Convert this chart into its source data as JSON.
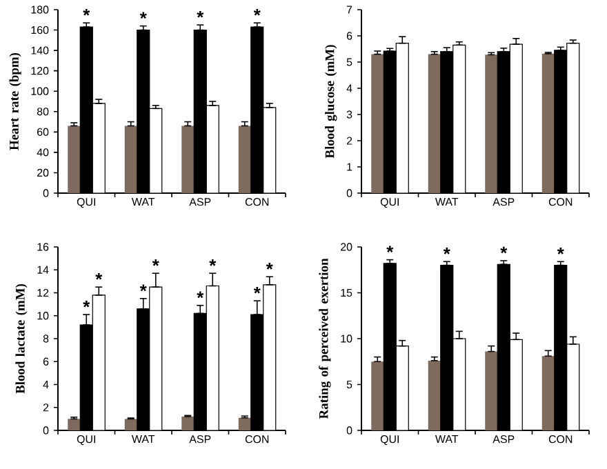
{
  "chart_data": [
    {
      "type": "bar",
      "ylabel": "Heart rate (bpm)",
      "categories": [
        "QUI",
        "WAT",
        "ASP",
        "CON"
      ],
      "ylim": [
        0,
        180
      ],
      "yticks": [
        0,
        20,
        40,
        60,
        80,
        100,
        120,
        140,
        160,
        180
      ],
      "series": [
        {
          "color": "#7f6b5d",
          "values": [
            66,
            66,
            66,
            66
          ],
          "errors": [
            [
              66,
              69
            ],
            [
              66,
              70
            ],
            [
              66,
              70
            ],
            [
              66,
              70
            ]
          ]
        },
        {
          "color": "#000000",
          "values": [
            163,
            160,
            160,
            163
          ],
          "errors": [
            [
              163,
              167
            ],
            [
              160,
              164
            ],
            [
              160,
              165
            ],
            [
              163,
              167
            ]
          ]
        },
        {
          "color": "#ffffff",
          "values": [
            88,
            83,
            86,
            84
          ],
          "errors": [
            [
              88,
              92
            ],
            [
              83,
              86
            ],
            [
              86,
              90
            ],
            [
              84,
              88
            ]
          ]
        }
      ],
      "annotations": [
        {
          "text": "*",
          "x": "QUI",
          "y": 163
        },
        {
          "text": "*",
          "x": "WAT",
          "y": 160
        },
        {
          "text": "*",
          "x": "ASP",
          "y": 160
        },
        {
          "text": "*",
          "x": "CON",
          "y": 163
        }
      ]
    },
    {
      "type": "bar",
      "ylabel": "Blood glucose (mM)",
      "categories": [
        "QUI",
        "WAT",
        "ASP",
        "CON"
      ],
      "ylim": [
        0,
        7
      ],
      "yticks": [
        0,
        1,
        2,
        3,
        4,
        5,
        6,
        7
      ],
      "series": [
        {
          "color": "#7f6b5d",
          "values": [
            5.3,
            5.3,
            5.28,
            5.32
          ],
          "errors": [
            [
              5.3,
              5.42
            ],
            [
              5.3,
              5.4
            ],
            [
              5.28,
              5.36
            ],
            [
              5.32,
              5.37
            ]
          ]
        },
        {
          "color": "#000000",
          "values": [
            5.42,
            5.4,
            5.4,
            5.45
          ],
          "errors": [
            [
              5.42,
              5.52
            ],
            [
              5.4,
              5.55
            ],
            [
              5.4,
              5.53
            ],
            [
              5.45,
              5.57
            ]
          ]
        },
        {
          "color": "#ffffff",
          "values": [
            5.72,
            5.65,
            5.68,
            5.72
          ],
          "errors": [
            [
              5.72,
              5.97
            ],
            [
              5.65,
              5.77
            ],
            [
              5.68,
              5.9
            ],
            [
              5.72,
              5.84
            ]
          ]
        }
      ]
    },
    {
      "type": "bar",
      "ylabel": "Blood lactate (mM)",
      "categories": [
        "QUI",
        "WAT",
        "ASP",
        "CON"
      ],
      "ylim": [
        0,
        16
      ],
      "yticks": [
        0,
        2,
        4,
        6,
        8,
        10,
        12,
        14,
        16
      ],
      "series": [
        {
          "color": "#7f6b5d",
          "values": [
            1.0,
            1.0,
            1.2,
            1.1
          ],
          "errors": [
            [
              1.0,
              1.15
            ],
            [
              1.0,
              1.08
            ],
            [
              1.2,
              1.3
            ],
            [
              1.1,
              1.25
            ]
          ]
        },
        {
          "color": "#000000",
          "values": [
            9.2,
            10.6,
            10.2,
            10.1
          ],
          "errors": [
            [
              9.2,
              10.1
            ],
            [
              10.6,
              11.5
            ],
            [
              10.2,
              10.9
            ],
            [
              10.1,
              11.3
            ]
          ]
        },
        {
          "color": "#ffffff",
          "values": [
            11.8,
            12.5,
            12.6,
            12.7
          ],
          "errors": [
            [
              11.8,
              12.5
            ],
            [
              12.5,
              13.7
            ],
            [
              12.6,
              13.7
            ],
            [
              12.7,
              13.4
            ]
          ]
        }
      ],
      "annotations": [
        {
          "text": "*",
          "x": "QUI",
          "y": 9.2
        },
        {
          "text": "*",
          "x": "QUI",
          "y": 11.8
        },
        {
          "text": "*",
          "x": "WAT",
          "y": 10.6
        },
        {
          "text": "*",
          "x": "WAT",
          "y": 12.5
        },
        {
          "text": "*",
          "x": "ASP",
          "y": 10.2
        },
        {
          "text": "*",
          "x": "ASP",
          "y": 12.6
        },
        {
          "text": "*",
          "x": "CON",
          "y": 10.1
        },
        {
          "text": "*",
          "x": "CON",
          "y": 12.7
        }
      ]
    },
    {
      "type": "bar",
      "ylabel": "Rating of perceived exertion",
      "categories": [
        "QUI",
        "WAT",
        "ASP",
        "CON"
      ],
      "ylim": [
        0,
        20
      ],
      "yticks": [
        0,
        5,
        10,
        15,
        20
      ],
      "series": [
        {
          "color": "#7f6b5d",
          "values": [
            7.5,
            7.6,
            8.6,
            8.1
          ],
          "errors": [
            [
              7.5,
              8.0
            ],
            [
              7.6,
              8.0
            ],
            [
              8.6,
              9.2
            ],
            [
              8.1,
              8.7
            ]
          ]
        },
        {
          "color": "#000000",
          "values": [
            18.2,
            18.0,
            18.1,
            18.0
          ],
          "errors": [
            [
              18.2,
              18.6
            ],
            [
              18.0,
              18.4
            ],
            [
              18.1,
              18.5
            ],
            [
              18.0,
              18.4
            ]
          ]
        },
        {
          "color": "#ffffff",
          "values": [
            9.2,
            10.0,
            9.9,
            9.4
          ],
          "errors": [
            [
              9.2,
              9.8
            ],
            [
              10.0,
              10.8
            ],
            [
              9.9,
              10.6
            ],
            [
              9.4,
              10.2
            ]
          ]
        }
      ],
      "annotations": [
        {
          "text": "*",
          "x": "QUI",
          "y": 18.2
        },
        {
          "text": "*",
          "x": "WAT",
          "y": 18.0
        },
        {
          "text": "*",
          "x": "ASP",
          "y": 18.1
        },
        {
          "text": "*",
          "x": "CON",
          "y": 18.0
        }
      ]
    }
  ]
}
